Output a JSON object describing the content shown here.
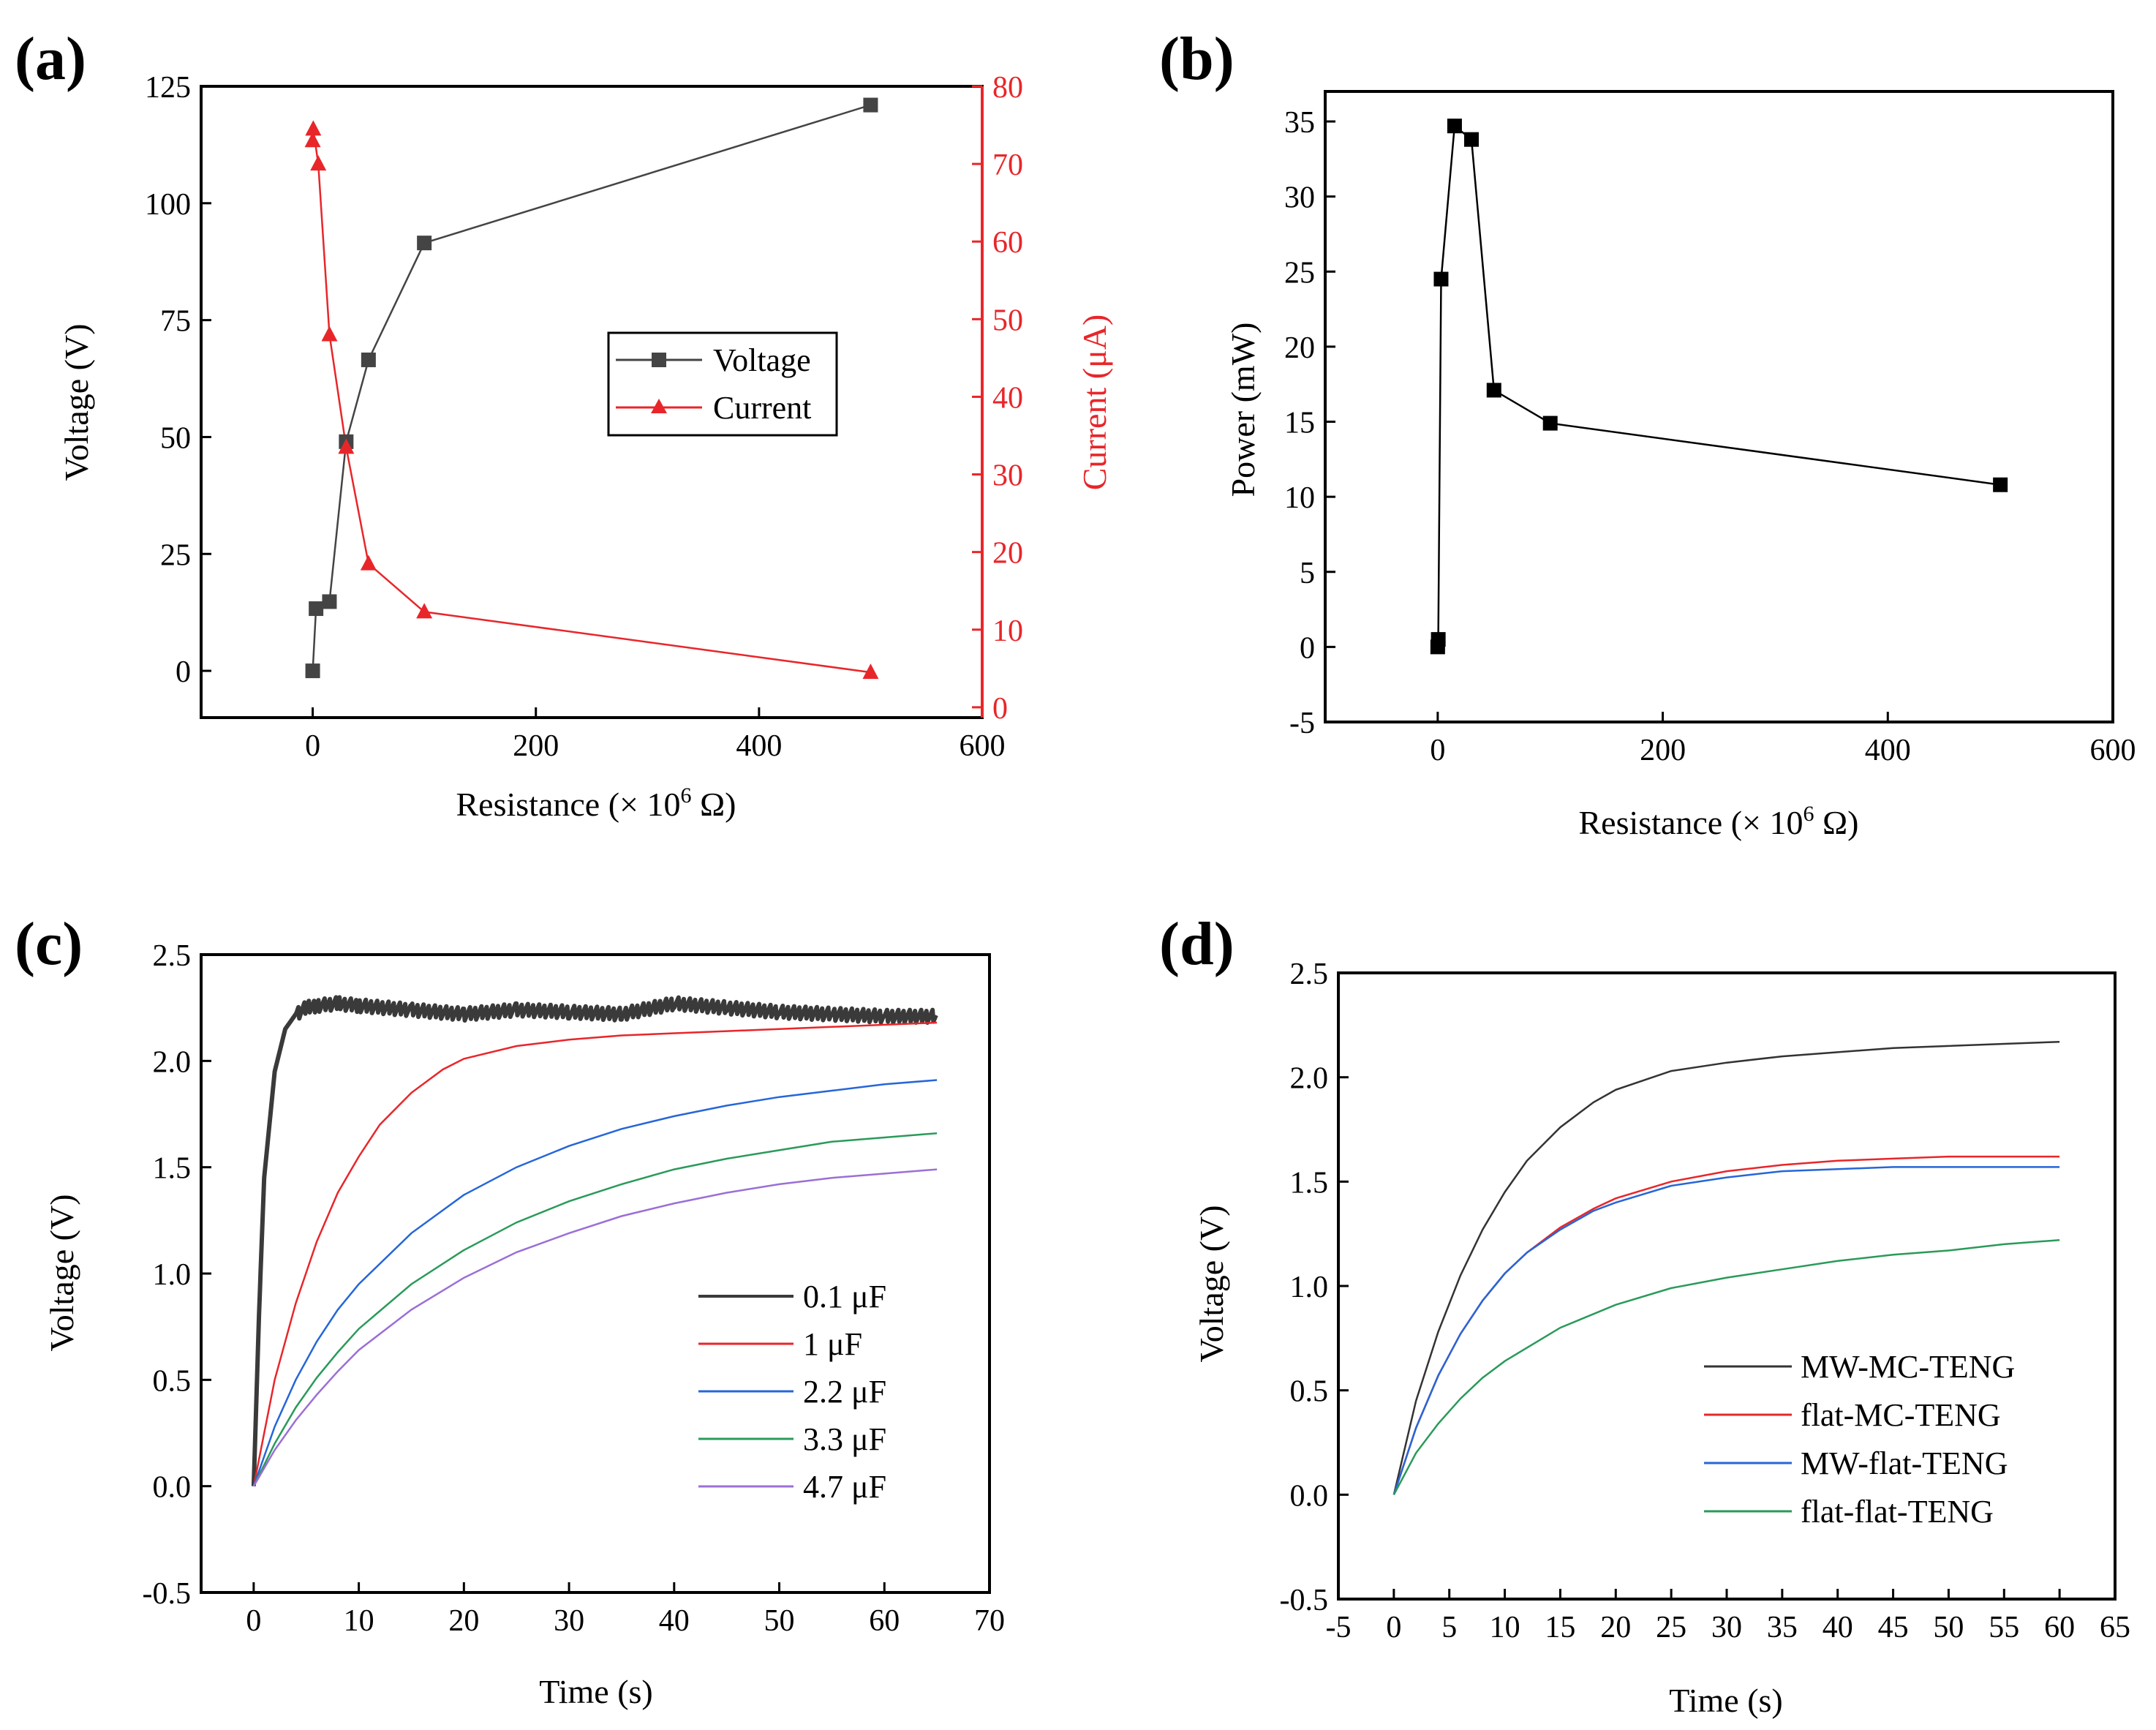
{
  "colors": {
    "axis": "#000000",
    "current": "#e8262a",
    "voltage_marker": "#444444",
    "c01": "#3a3a3a",
    "c1": "#e8262a",
    "c22": "#2666d8",
    "c33": "#2a9a5a",
    "c47": "#9b6fd6",
    "mwmc": "#333333",
    "flatmc": "#e8262a",
    "mwflat": "#2666d8",
    "flatflat": "#2a9a5a"
  },
  "chart_data": [
    {
      "id": "a",
      "panel_label": "(a)",
      "type": "line",
      "xlabel": "Resistance (× 10",
      "xlabel_sup": "6",
      "xlabel_tail": " Ω)",
      "ylabel": "Voltage (V)",
      "y2label": "Current (μA)",
      "xlim": [
        -100,
        600
      ],
      "ylim": [
        -10,
        125
      ],
      "y2lim": [
        -1.33,
        80
      ],
      "xticks": [
        0,
        200,
        400,
        600
      ],
      "yticks": [
        0,
        25,
        50,
        75,
        100,
        125
      ],
      "y2ticks": [
        0,
        10,
        20,
        30,
        40,
        50,
        60,
        70,
        80
      ],
      "legend_position": "center-right",
      "series": [
        {
          "name": "Voltage",
          "axis": "left",
          "marker": "square",
          "color": "#444444",
          "x": [
            0,
            3,
            15,
            30,
            50,
            100,
            500
          ],
          "y": [
            0,
            13.3,
            14.8,
            49,
            66.5,
            91.5,
            121
          ]
        },
        {
          "name": "Current",
          "axis": "right",
          "marker": "triangle",
          "color": "#e8262a",
          "x": [
            0,
            0.5,
            5,
            15,
            30,
            50,
            100,
            500
          ],
          "y": [
            73,
            74.5,
            70,
            48,
            33.5,
            18.5,
            12.3,
            4.5
          ]
        }
      ]
    },
    {
      "id": "b",
      "panel_label": "(b)",
      "type": "line",
      "xlabel": "Resistance (× 10",
      "xlabel_sup": "6",
      "xlabel_tail": " Ω)",
      "ylabel": "Power (mW)",
      "xlim": [
        -100,
        600
      ],
      "ylim": [
        -5,
        37
      ],
      "xticks": [
        0,
        200,
        400,
        600
      ],
      "yticks": [
        -5,
        0,
        5,
        10,
        15,
        20,
        25,
        30,
        35
      ],
      "series": [
        {
          "name": "Power",
          "marker": "square",
          "color": "#000000",
          "x": [
            0,
            0.5,
            3,
            15,
            30,
            50,
            100,
            500
          ],
          "y": [
            0,
            0.5,
            24.5,
            34.7,
            33.8,
            17.1,
            14.9,
            10.8
          ]
        }
      ]
    },
    {
      "id": "c",
      "panel_label": "(c)",
      "type": "line",
      "xlabel": "Time (s)",
      "ylabel": "Voltage (V)",
      "xlim": [
        -5,
        70
      ],
      "ylim": [
        -0.5,
        2.5
      ],
      "xticks": [
        0,
        10,
        20,
        30,
        40,
        50,
        60,
        70
      ],
      "yticks": [
        -0.5,
        0.0,
        0.5,
        1.0,
        1.5,
        2.0,
        2.5
      ],
      "ytick_labels": [
        "-0.5",
        "0.0",
        "0.5",
        "1.0",
        "1.5",
        "2.0",
        "2.5"
      ],
      "legend_position": "bottom-right",
      "series": [
        {
          "name": "0.1 μF",
          "color": "#3a3a3a",
          "noisy": true,
          "x": [
            0,
            0.5,
            1,
            2,
            3,
            4,
            5,
            6,
            8,
            10,
            15,
            20,
            25,
            30,
            35,
            40,
            45,
            50,
            55,
            60,
            65
          ],
          "y": [
            0,
            0.8,
            1.45,
            1.95,
            2.15,
            2.22,
            2.25,
            2.26,
            2.27,
            2.26,
            2.24,
            2.22,
            2.24,
            2.23,
            2.22,
            2.27,
            2.25,
            2.23,
            2.22,
            2.21,
            2.21
          ]
        },
        {
          "name": "1 μF",
          "color": "#e8262a",
          "x": [
            0,
            2,
            4,
            6,
            8,
            10,
            12,
            15,
            18,
            20,
            25,
            30,
            35,
            40,
            45,
            50,
            55,
            60,
            65
          ],
          "y": [
            0,
            0.5,
            0.86,
            1.15,
            1.38,
            1.55,
            1.7,
            1.85,
            1.96,
            2.01,
            2.07,
            2.1,
            2.12,
            2.13,
            2.14,
            2.15,
            2.16,
            2.17,
            2.18
          ]
        },
        {
          "name": "2.2 μF",
          "color": "#2666d8",
          "x": [
            0,
            2,
            4,
            6,
            8,
            10,
            15,
            20,
            25,
            30,
            35,
            40,
            45,
            50,
            55,
            60,
            65
          ],
          "y": [
            0,
            0.28,
            0.5,
            0.68,
            0.83,
            0.95,
            1.19,
            1.37,
            1.5,
            1.6,
            1.68,
            1.74,
            1.79,
            1.83,
            1.86,
            1.89,
            1.91
          ]
        },
        {
          "name": "3.3 μF",
          "color": "#2a9a5a",
          "x": [
            0,
            2,
            4,
            6,
            8,
            10,
            15,
            20,
            25,
            30,
            35,
            40,
            45,
            50,
            55,
            60,
            65
          ],
          "y": [
            0,
            0.2,
            0.37,
            0.51,
            0.63,
            0.74,
            0.95,
            1.11,
            1.24,
            1.34,
            1.42,
            1.49,
            1.54,
            1.58,
            1.62,
            1.64,
            1.66
          ]
        },
        {
          "name": "4.7 μF",
          "color": "#9b6fd6",
          "x": [
            0,
            2,
            4,
            6,
            8,
            10,
            15,
            20,
            25,
            30,
            35,
            40,
            45,
            50,
            55,
            60,
            65
          ],
          "y": [
            0,
            0.17,
            0.31,
            0.43,
            0.54,
            0.64,
            0.83,
            0.98,
            1.1,
            1.19,
            1.27,
            1.33,
            1.38,
            1.42,
            1.45,
            1.47,
            1.49
          ]
        }
      ]
    },
    {
      "id": "d",
      "panel_label": "(d)",
      "type": "line",
      "xlabel": "Time (s)",
      "ylabel": "Voltage (V)",
      "xlim": [
        -5,
        65
      ],
      "ylim": [
        -0.5,
        2.5
      ],
      "xticks": [
        -5,
        0,
        5,
        10,
        15,
        20,
        25,
        30,
        35,
        40,
        45,
        50,
        55,
        60,
        65
      ],
      "yticks": [
        -0.5,
        0.0,
        0.5,
        1.0,
        1.5,
        2.0,
        2.5
      ],
      "ytick_labels": [
        "-0.5",
        "0.0",
        "0.5",
        "1.0",
        "1.5",
        "2.0",
        "2.5"
      ],
      "legend_position": "bottom-right",
      "series": [
        {
          "name": "MW-MC-TENG",
          "color": "#333333",
          "x": [
            0,
            2,
            4,
            6,
            8,
            10,
            12,
            15,
            18,
            20,
            25,
            30,
            35,
            40,
            45,
            50,
            55,
            60
          ],
          "y": [
            0,
            0.45,
            0.78,
            1.05,
            1.27,
            1.45,
            1.6,
            1.76,
            1.88,
            1.94,
            2.03,
            2.07,
            2.1,
            2.12,
            2.14,
            2.15,
            2.16,
            2.17
          ]
        },
        {
          "name": "flat-MC-TENG",
          "color": "#e8262a",
          "x": [
            0,
            2,
            4,
            6,
            8,
            10,
            12,
            15,
            18,
            20,
            25,
            30,
            35,
            40,
            45,
            50,
            55,
            60
          ],
          "y": [
            0,
            0.32,
            0.57,
            0.77,
            0.93,
            1.06,
            1.16,
            1.28,
            1.37,
            1.42,
            1.5,
            1.55,
            1.58,
            1.6,
            1.61,
            1.62,
            1.62,
            1.62
          ]
        },
        {
          "name": "MW-flat-TENG",
          "color": "#2666d8",
          "x": [
            0,
            2,
            4,
            6,
            8,
            10,
            12,
            15,
            18,
            20,
            25,
            30,
            35,
            40,
            45,
            50,
            55,
            60
          ],
          "y": [
            0,
            0.32,
            0.57,
            0.77,
            0.93,
            1.06,
            1.16,
            1.27,
            1.36,
            1.4,
            1.48,
            1.52,
            1.55,
            1.56,
            1.57,
            1.57,
            1.57,
            1.57
          ]
        },
        {
          "name": "flat-flat-TENG",
          "color": "#2a9a5a",
          "x": [
            0,
            2,
            4,
            6,
            8,
            10,
            15,
            20,
            25,
            30,
            35,
            40,
            45,
            50,
            55,
            60
          ],
          "y": [
            0,
            0.2,
            0.34,
            0.46,
            0.56,
            0.64,
            0.8,
            0.91,
            0.99,
            1.04,
            1.08,
            1.12,
            1.15,
            1.17,
            1.2,
            1.22
          ]
        }
      ]
    }
  ]
}
